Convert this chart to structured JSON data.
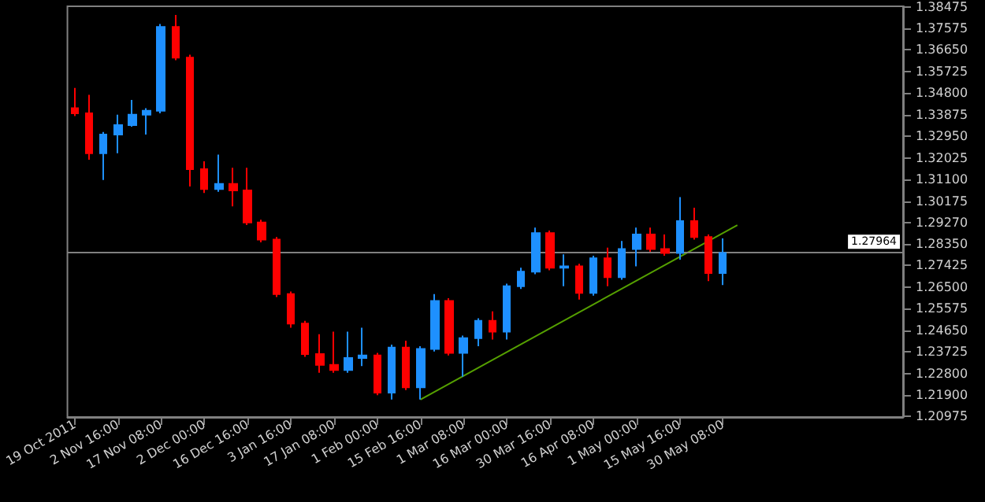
{
  "chart_data": {
    "type": "candlestick",
    "categories": [
      "19 Oct 2011",
      null,
      null,
      "2 Nov 16:00",
      null,
      null,
      "17 Nov 08:00",
      null,
      null,
      "2 Dec 00:00",
      null,
      null,
      "16 Dec 16:00",
      null,
      null,
      "3 Jan 16:00",
      null,
      null,
      "17 Jan 08:00",
      null,
      null,
      "1 Feb 00:00",
      null,
      null,
      "15 Feb 16:00",
      null,
      null,
      "1 Mar 08:00",
      null,
      null,
      "16 Mar 00:00",
      null,
      null,
      "30 Mar 16:00",
      null,
      null,
      "16 Apr 08:00",
      null,
      null,
      "1 May 00:00",
      null,
      null,
      "15 May 16:00",
      null,
      null,
      "30 May 08:00",
      null,
      null,
      null,
      null,
      null,
      null,
      null,
      null,
      null,
      null,
      null,
      null
    ],
    "series": [
      {
        "ohlc": [
          [
            1.3415,
            1.3501,
            1.3381,
            1.3393
          ],
          [
            1.3393,
            1.3472,
            1.3194,
            1.3222
          ],
          [
            1.3222,
            1.3313,
            1.3108,
            1.3302
          ],
          [
            1.3302,
            1.3387,
            1.3222,
            1.3342
          ],
          [
            1.3342,
            1.345,
            1.3336,
            1.3387
          ],
          [
            1.3387,
            1.3415,
            1.3302,
            1.3404
          ],
          [
            1.3404,
            1.3774,
            1.3393,
            1.3762
          ],
          [
            1.3762,
            1.3813,
            1.362,
            1.3631
          ],
          [
            1.3631,
            1.3643,
            1.308,
            1.3154
          ],
          [
            1.3154,
            1.3188,
            1.3052,
            1.3069
          ],
          [
            1.3069,
            1.3216,
            1.3057,
            1.3091
          ],
          [
            1.3091,
            1.316,
            1.2995,
            1.3063
          ],
          [
            1.3063,
            1.316,
            1.2915,
            1.2926
          ],
          [
            1.2926,
            1.2938,
            1.2841,
            1.2853
          ],
          [
            1.2853,
            1.2864,
            1.2608,
            1.262
          ],
          [
            1.262,
            1.2631,
            1.2477,
            1.2494
          ],
          [
            1.2494,
            1.2506,
            1.2352,
            1.2364
          ],
          [
            1.2364,
            1.2449,
            1.2284,
            1.2318
          ],
          [
            1.2318,
            1.246,
            1.2284,
            1.2296
          ],
          [
            1.2296,
            1.246,
            1.2284,
            1.2347
          ],
          [
            1.2347,
            1.2477,
            1.2313,
            1.2358
          ],
          [
            1.2358,
            1.2369,
            1.2188,
            1.2199
          ],
          [
            1.2199,
            1.2404,
            1.217,
            1.2392
          ],
          [
            1.2392,
            1.2421,
            1.221,
            1.2222
          ],
          [
            1.2222,
            1.2398,
            1.217,
            1.2386
          ],
          [
            1.2386,
            1.262,
            1.2375,
            1.2591
          ],
          [
            1.2591,
            1.2603,
            1.2358,
            1.2369
          ],
          [
            1.2369,
            1.2443,
            1.2267,
            1.2432
          ],
          [
            1.2432,
            1.2517,
            1.2398,
            1.2506
          ],
          [
            1.2506,
            1.2546,
            1.2426,
            1.246
          ],
          [
            1.246,
            1.2665,
            1.2426,
            1.2654
          ],
          [
            1.2654,
            1.2733,
            1.2642,
            1.2716
          ],
          [
            1.2716,
            1.2904,
            1.2705,
            1.2881
          ],
          [
            1.2881,
            1.2892,
            1.2722,
            1.2733
          ],
          [
            1.2733,
            1.279,
            1.2654,
            1.2739
          ],
          [
            1.2739,
            1.275,
            1.2597,
            1.2625
          ],
          [
            1.2625,
            1.2784,
            1.2614,
            1.2773
          ],
          [
            1.2773,
            1.2819,
            1.2654,
            1.2693
          ],
          [
            1.2693,
            1.2847,
            1.2682,
            1.2813
          ],
          [
            1.2813,
            1.2904,
            1.2739,
            1.2875
          ],
          [
            1.2875,
            1.2904,
            1.2801,
            1.2813
          ],
          [
            1.2813,
            1.2875,
            1.2784,
            1.2796
          ],
          [
            1.2796,
            1.3035,
            1.2767,
            1.2932
          ],
          [
            1.2932,
            1.2989,
            1.2853,
            1.2864
          ],
          [
            1.2864,
            1.2875,
            1.2676,
            1.271
          ],
          [
            1.271,
            1.2858,
            1.2659,
            1.2796
          ],
          null,
          null,
          null,
          null,
          null,
          null,
          null,
          null,
          null,
          null,
          null,
          null
        ],
        "colors": [
          "#ff0000",
          "#ff0000",
          "#1e90ff",
          "#1e90ff",
          "#1e90ff",
          "#1e90ff",
          "#1e90ff",
          "#ff0000",
          "#ff0000",
          "#ff0000",
          "#1e90ff",
          "#ff0000",
          "#ff0000",
          "#ff0000",
          "#ff0000",
          "#ff0000",
          "#ff0000",
          "#ff0000",
          "#ff0000",
          "#1e90ff",
          "#1e90ff",
          "#ff0000",
          "#1e90ff",
          "#ff0000",
          "#1e90ff",
          "#1e90ff",
          "#ff0000",
          "#1e90ff",
          "#1e90ff",
          "#ff0000",
          "#1e90ff",
          "#1e90ff",
          "#1e90ff",
          "#ff0000",
          "#1e90ff",
          "#ff0000",
          "#1e90ff",
          "#ff0000",
          "#1e90ff",
          "#1e90ff",
          "#ff0000",
          "#ff0000",
          "#1e90ff",
          "#ff0000",
          "#ff0000",
          "#1e90ff",
          null,
          null,
          null,
          null,
          null,
          null,
          null,
          null,
          null,
          null,
          null,
          null
        ]
      },
      {
        "type": "line",
        "color": "#55a000",
        "values": [
          null,
          null,
          null,
          null,
          null,
          null,
          null,
          null,
          null,
          null,
          null,
          null,
          null,
          null,
          null,
          null,
          null,
          null,
          null,
          null,
          null,
          null,
          null,
          null,
          1.2169,
          null,
          null,
          null,
          null,
          null,
          null,
          null,
          null,
          null,
          null,
          null,
          null,
          null,
          null,
          null,
          null,
          null,
          null,
          null,
          null,
          null,
          1.2915,
          null,
          null,
          null,
          null,
          null,
          null,
          null,
          null,
          null,
          null,
          null
        ]
      }
    ],
    "ylim": [
      1.2095,
      1.385
    ],
    "yticks": [
      {
        "value": 1.20975,
        "label": "1.20975"
      },
      {
        "value": 1.219,
        "label": "1.21900"
      },
      {
        "value": 1.228,
        "label": "1.22800"
      },
      {
        "value": 1.23725,
        "label": "1.23725"
      },
      {
        "value": 1.2465,
        "label": "1.24650"
      },
      {
        "value": 1.25575,
        "label": "1.25575"
      },
      {
        "value": 1.265,
        "label": "1.26500"
      },
      {
        "value": 1.27425,
        "label": "1.27425"
      },
      {
        "value": 1.2835,
        "label": "1.28350"
      },
      {
        "value": 1.2927,
        "label": "1.29270"
      },
      {
        "value": 1.30175,
        "label": "1.30175"
      },
      {
        "value": 1.311,
        "label": "1.31100"
      },
      {
        "value": 1.32025,
        "label": "1.32025"
      },
      {
        "value": 1.3295,
        "label": "1.32950"
      },
      {
        "value": 1.33875,
        "label": "1.33875"
      },
      {
        "value": 1.348,
        "label": "1.34800"
      },
      {
        "value": 1.35725,
        "label": "1.35725"
      },
      {
        "value": 1.3665,
        "label": "1.36650"
      },
      {
        "value": 1.37575,
        "label": "1.37575"
      },
      {
        "value": 1.38475,
        "label": "1.38475"
      }
    ],
    "ref_lines": [
      {
        "axis": "y",
        "value": 1.27964,
        "label": "1.27964",
        "color": "#808080"
      }
    ]
  }
}
